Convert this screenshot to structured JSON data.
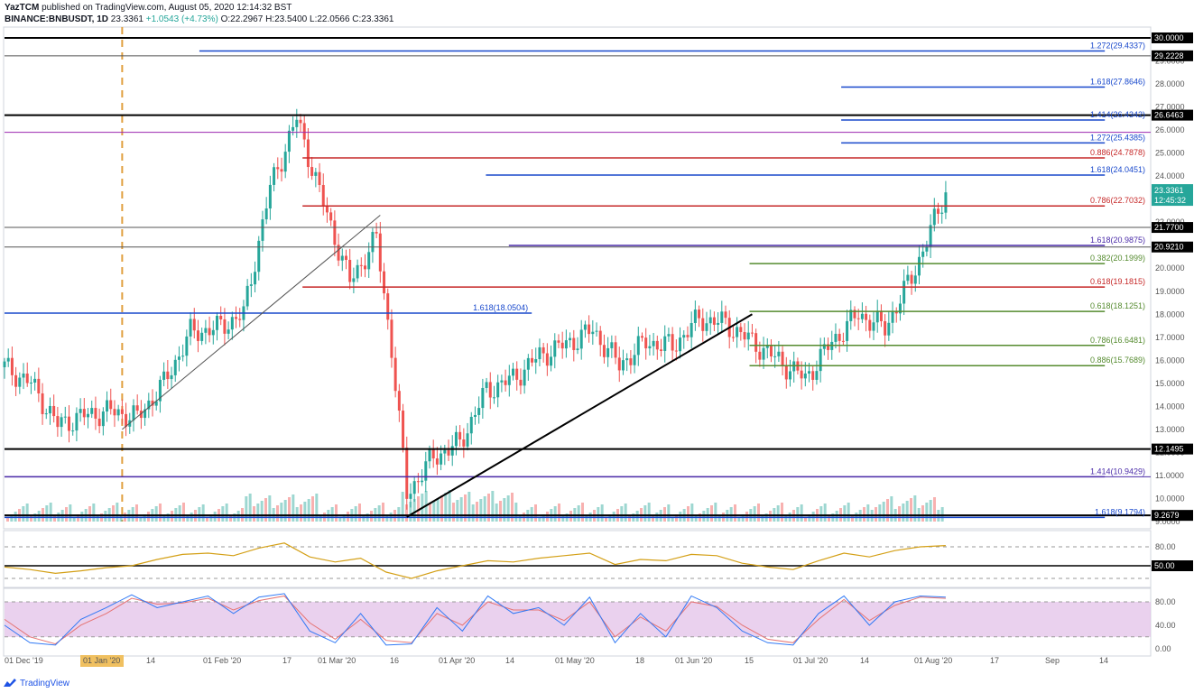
{
  "header": {
    "publisher": "YazTCM",
    "published_on": "published on TradingView.com, August 05, 2020 12:14:32 BST",
    "symbol": "BINANCE:BNBUSDT, 1D",
    "last": "23.3361",
    "change": "+1.0543 (+4.73%)",
    "open": "O:22.2967",
    "high": "H:23.5400",
    "low": "L:22.0566",
    "close": "C:23.3361"
  },
  "footer": {
    "brand": "TradingView"
  },
  "colors": {
    "up": "#26a69a",
    "down": "#ef5350",
    "black": "#000000",
    "gray_line": "#555555",
    "purple": "#9c27b0",
    "indigo": "#4a2ba8",
    "red": "#c62828",
    "blue": "#1848cc",
    "green": "#558b2f",
    "orange": "#e0a040",
    "rsi": "#d4a017",
    "stoch_k": "#3179f5",
    "stoch_d": "#e57373",
    "stoch_band": "#e1bee7"
  },
  "chart_data": {
    "type": "candlestick",
    "symbol": "BNBUSDT",
    "timeframe": "1D",
    "y_range": [
      9,
      30
    ],
    "x_labels": [
      "01 Dec '19",
      "01 Jan '20",
      "14",
      "01 Feb '20",
      "17",
      "01 Mar '20",
      "16",
      "01 Apr '20",
      "14",
      "01 May '20",
      "18",
      "01 Jun '20",
      "15",
      "01 Jul '20",
      "14",
      "01 Aug '20",
      "17",
      "Sep",
      "14"
    ],
    "y_ticks": [
      "30.0000",
      "29.0000",
      "28.0000",
      "27.0000",
      "26.0000",
      "25.0000",
      "24.0000",
      "23.0000",
      "22.0000",
      "21.0000",
      "20.0000",
      "19.0000",
      "18.0000",
      "17.0000",
      "16.0000",
      "15.0000",
      "14.0000",
      "13.0000",
      "12.0000",
      "11.0000",
      "10.0000",
      "9.0000"
    ],
    "last_price_label": "23.3361",
    "countdown_label": "12:45:32",
    "price_path": [
      [
        "2019-12-01",
        15.7
      ],
      [
        "2019-12-08",
        15.0
      ],
      [
        "2019-12-15",
        13.2
      ],
      [
        "2019-12-22",
        13.6
      ],
      [
        "2019-12-29",
        13.8
      ],
      [
        "2020-01-05",
        13.5
      ],
      [
        "2020-01-12",
        15.0
      ],
      [
        "2020-01-19",
        17.2
      ],
      [
        "2020-01-26",
        17.4
      ],
      [
        "2020-02-02",
        18.0
      ],
      [
        "2020-02-09",
        23.5
      ],
      [
        "2020-02-16",
        26.5
      ],
      [
        "2020-02-23",
        22.8
      ],
      [
        "2020-03-01",
        19.4
      ],
      [
        "2020-03-08",
        21.3
      ],
      [
        "2020-03-12",
        16.5
      ],
      [
        "2020-03-16",
        10.2
      ],
      [
        "2020-03-23",
        11.8
      ],
      [
        "2020-03-30",
        12.4
      ],
      [
        "2020-04-06",
        14.7
      ],
      [
        "2020-04-13",
        15.2
      ],
      [
        "2020-04-20",
        16.2
      ],
      [
        "2020-04-27",
        16.7
      ],
      [
        "2020-05-04",
        17.3
      ],
      [
        "2020-05-11",
        15.8
      ],
      [
        "2020-05-18",
        16.8
      ],
      [
        "2020-05-25",
        16.6
      ],
      [
        "2020-06-01",
        17.8
      ],
      [
        "2020-06-08",
        17.6
      ],
      [
        "2020-06-15",
        16.8
      ],
      [
        "2020-06-22",
        16.0
      ],
      [
        "2020-06-29",
        15.2
      ],
      [
        "2020-07-06",
        16.8
      ],
      [
        "2020-07-13",
        18.0
      ],
      [
        "2020-07-20",
        17.4
      ],
      [
        "2020-07-27",
        19.6
      ],
      [
        "2020-08-01",
        21.6
      ],
      [
        "2020-08-05",
        23.3361
      ]
    ],
    "levels": [
      {
        "price": 30.0,
        "label": "30.0000",
        "color": "black",
        "axis_label": true
      },
      {
        "price": 29.2228,
        "label": "29.2228",
        "color": "gray_line",
        "axis_label": true
      },
      {
        "price": 26.6463,
        "label": "26.6463",
        "color": "black",
        "axis_label": true
      },
      {
        "price": 25.9,
        "label": "",
        "color": "purple",
        "axis_label": false
      },
      {
        "price": 21.77,
        "label": "21.7700",
        "color": "gray_line",
        "axis_label": true
      },
      {
        "price": 20.921,
        "label": "20.9210",
        "color": "gray_line",
        "axis_label": true
      },
      {
        "price": 12.1495,
        "label": "12.1495",
        "color": "black",
        "axis_label": true
      },
      {
        "price": 10.9429,
        "label": "",
        "color": "indigo",
        "axis_label": false
      },
      {
        "price": 9.2679,
        "label": "9.2679",
        "color": "black",
        "axis_label": true
      }
    ],
    "fib_annotations": [
      {
        "price": 29.4337,
        "text": "1.272(29.4337)",
        "color": "blue",
        "x_from": 0.17,
        "x_to": 0.96
      },
      {
        "price": 27.8646,
        "text": "1.618(27.8646)",
        "color": "blue",
        "x_from": 0.73,
        "x_to": 0.96
      },
      {
        "price": 26.4342,
        "text": "1.414(26.4342)",
        "color": "blue",
        "x_from": 0.73,
        "x_to": 0.96
      },
      {
        "price": 25.4385,
        "text": "1.272(25.4385)",
        "color": "blue",
        "x_from": 0.73,
        "x_to": 0.96
      },
      {
        "price": 24.7878,
        "text": "0.886(24.7878)",
        "color": "red",
        "x_from": 0.26,
        "x_to": 0.96
      },
      {
        "price": 24.0451,
        "text": "1.618(24.0451)",
        "color": "blue",
        "x_from": 0.42,
        "x_to": 0.96
      },
      {
        "price": 22.7032,
        "text": "0.786(22.7032)",
        "color": "red",
        "x_from": 0.26,
        "x_to": 0.96
      },
      {
        "price": 20.9875,
        "text": "1.618(20.9875)",
        "color": "indigo",
        "x_from": 0.44,
        "x_to": 0.96
      },
      {
        "price": 20.1999,
        "text": "0.382(20.1999)",
        "color": "green",
        "x_from": 0.65,
        "x_to": 0.96
      },
      {
        "price": 19.1815,
        "text": "0.618(19.1815)",
        "color": "red",
        "x_from": 0.26,
        "x_to": 0.96
      },
      {
        "price": 18.1251,
        "text": "0.618(18.1251)",
        "color": "green",
        "x_from": 0.65,
        "x_to": 0.96
      },
      {
        "price": 18.0504,
        "text": "1.618(18.0504)",
        "color": "blue",
        "x_from": 0.0,
        "x_to": 0.46
      },
      {
        "price": 16.6481,
        "text": "0.786(16.6481)",
        "color": "green",
        "x_from": 0.65,
        "x_to": 0.96
      },
      {
        "price": 15.7689,
        "text": "0.886(15.7689)",
        "color": "green",
        "x_from": 0.65,
        "x_to": 0.96
      },
      {
        "price": 10.9429,
        "text": "1.414(10.9429)",
        "color": "indigo",
        "x_from": 0.0,
        "x_to": 0.96
      },
      {
        "price": 9.1794,
        "text": "1.618(9.1794)",
        "color": "blue",
        "x_from": 0.0,
        "x_to": 0.96
      }
    ],
    "trendlines": [
      {
        "from": [
          "2020-01-01",
          13.0
        ],
        "to": [
          "2020-03-09",
          22.3
        ],
        "color": "gray_line"
      },
      {
        "from": [
          "2020-03-16",
          9.2
        ],
        "to": [
          "2020-06-15",
          18.0
        ],
        "color": "black"
      }
    ],
    "rsi": {
      "y_range": [
        20,
        100
      ],
      "ticks": [
        "80.00",
        "50.00"
      ],
      "highlight_label": "50.00",
      "path": [
        48,
        44,
        38,
        42,
        47,
        50,
        60,
        68,
        70,
        66,
        78,
        86,
        64,
        56,
        62,
        40,
        30,
        42,
        50,
        58,
        56,
        62,
        66,
        70,
        52,
        60,
        58,
        68,
        66,
        54,
        48,
        44,
        58,
        70,
        64,
        74,
        80,
        82
      ]
    },
    "stoch": {
      "y_range": [
        -5,
        100
      ],
      "ticks": [
        "80.00",
        "40.00",
        "0.00"
      ],
      "k_path": [
        40,
        10,
        6,
        50,
        70,
        92,
        70,
        80,
        90,
        60,
        88,
        94,
        30,
        10,
        60,
        6,
        8,
        70,
        30,
        90,
        60,
        70,
        40,
        88,
        10,
        60,
        20,
        90,
        70,
        30,
        10,
        6,
        60,
        90,
        40,
        80,
        90,
        88
      ],
      "d_path": [
        50,
        20,
        8,
        40,
        60,
        86,
        76,
        78,
        86,
        66,
        82,
        90,
        44,
        16,
        50,
        14,
        10,
        60,
        40,
        80,
        66,
        66,
        48,
        80,
        20,
        54,
        30,
        80,
        72,
        40,
        16,
        10,
        50,
        84,
        48,
        74,
        88,
        86
      ]
    }
  }
}
